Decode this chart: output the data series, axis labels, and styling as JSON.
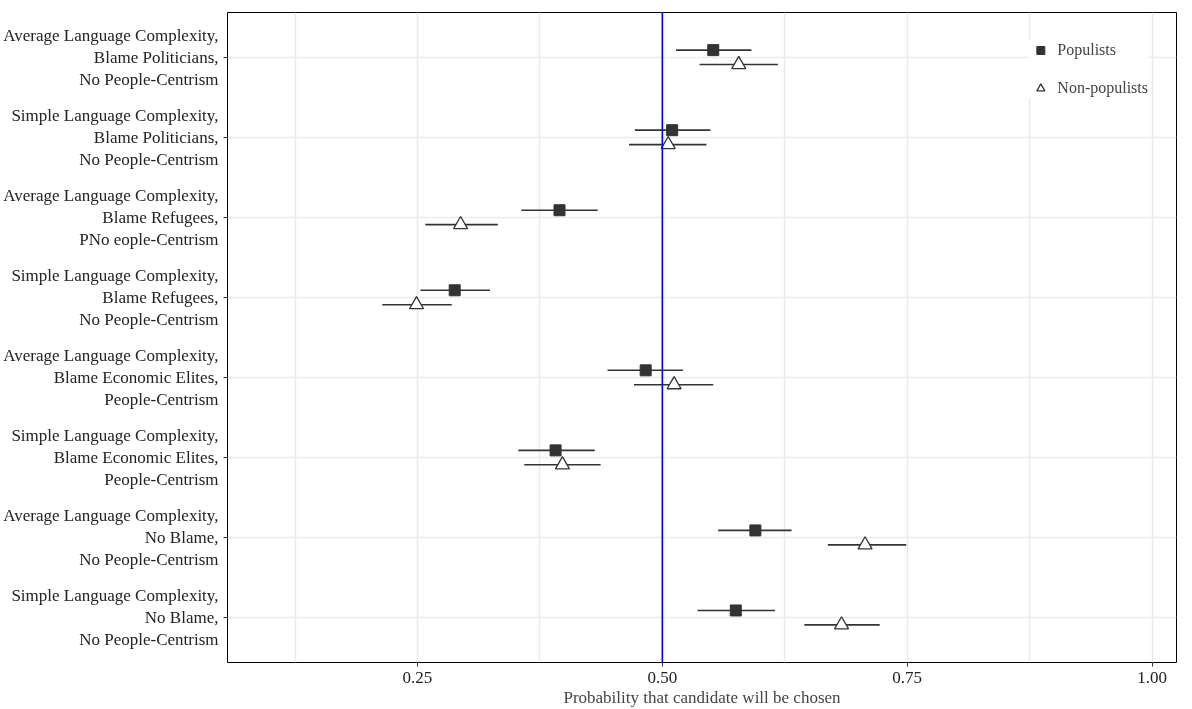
{
  "chart_data": {
    "type": "scatter",
    "orientation": "horizontal",
    "xlabel": "Probability that candidate will be chosen",
    "categories": [
      "Average Language Complexity,\nBlame Politicians,\nNo People-Centrism",
      "Simple Language Complexity,\nBlame Politicians,\nNo People-Centrism",
      "Average Language Complexity,\nBlame Refugees,\nPNo eople-Centrism",
      "Simple Language Complexity,\nBlame Refugees,\nNo People-Centrism",
      "Average Language Complexity,\nBlame Economic Elites,\nPeople-Centrism",
      "Simple Language Complexity,\nBlame Economic Elites,\nPeople-Centrism",
      "Average Language Complexity,\nNo Blame,\nNo People-Centrism",
      "Simple Language Complexity,\nNo Blame,\nNo People-Centrism"
    ],
    "series": [
      {
        "name": "Populists",
        "color": "#333333",
        "marker": "square",
        "values": [
          0.552,
          0.51,
          0.395,
          0.288,
          0.483,
          0.391,
          0.595,
          0.575
        ],
        "errors": [
          [
            0.514,
            0.591
          ],
          [
            0.472,
            0.549
          ],
          [
            0.356,
            0.434
          ],
          [
            0.253,
            0.324
          ],
          [
            0.444,
            0.521
          ],
          [
            0.353,
            0.431
          ],
          [
            0.557,
            0.632
          ],
          [
            0.536,
            0.615
          ]
        ]
      },
      {
        "name": "Non-populists",
        "color": "#333333",
        "marker": "triangle",
        "values": [
          0.578,
          0.506,
          0.294,
          0.249,
          0.512,
          0.398,
          0.707,
          0.683
        ],
        "errors": [
          [
            0.538,
            0.618
          ],
          [
            0.466,
            0.545
          ],
          [
            0.258,
            0.332
          ],
          [
            0.214,
            0.285
          ],
          [
            0.471,
            0.552
          ],
          [
            0.359,
            0.437
          ],
          [
            0.669,
            0.749
          ],
          [
            0.645,
            0.722
          ]
        ]
      }
    ],
    "xlim": [
      0.056,
      1.025
    ],
    "xticks": [
      {
        "value": 0.25,
        "label": "0.25"
      },
      {
        "value": 0.5,
        "label": "0.50"
      },
      {
        "value": 0.75,
        "label": "0.75"
      },
      {
        "value": 1.0,
        "label": "1.00"
      }
    ],
    "ref_lines": [
      {
        "axis": "x",
        "value": 0.5,
        "color": "#0000ff"
      }
    ],
    "grid": true,
    "legend": "top right"
  }
}
